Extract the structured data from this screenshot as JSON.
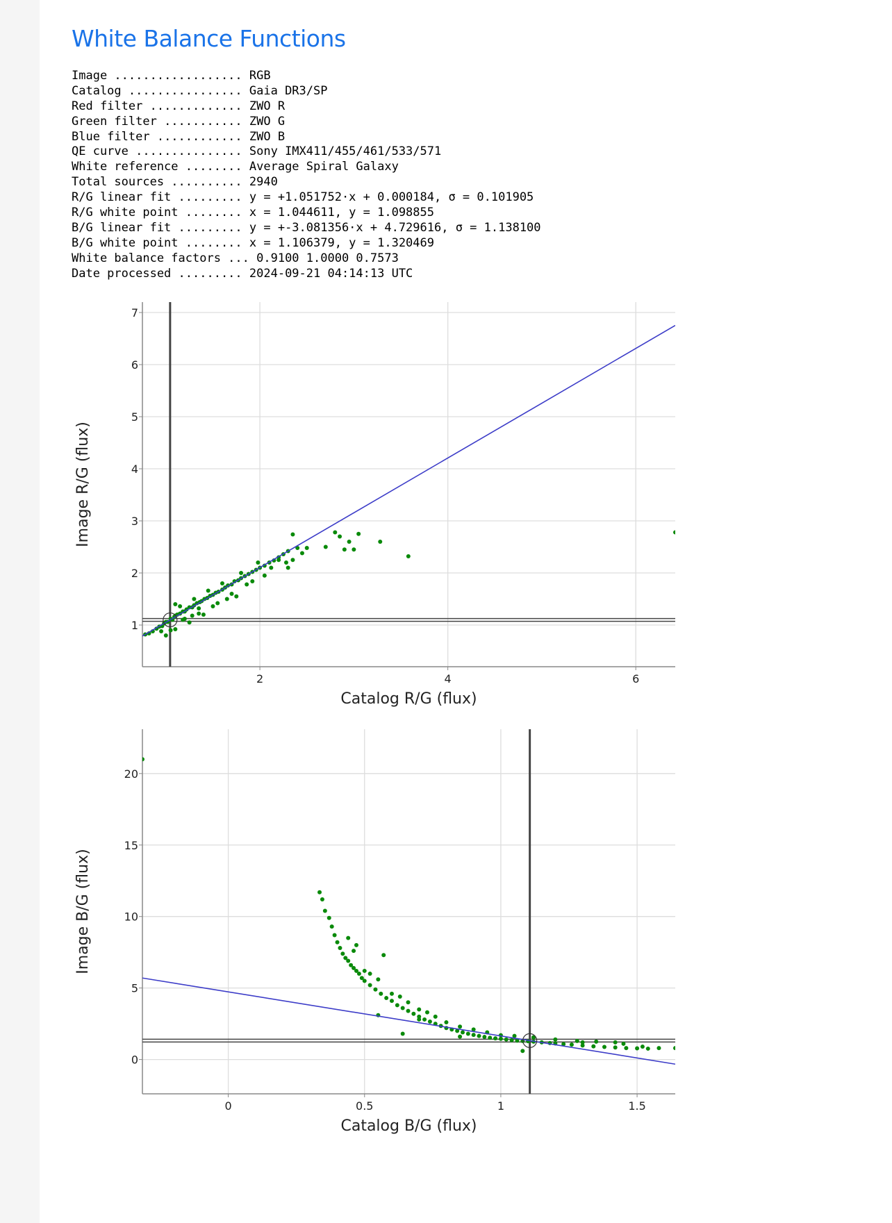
{
  "page": {
    "title": "White Balance Functions"
  },
  "info": [
    {
      "label": "Image",
      "value": "RGB"
    },
    {
      "label": "Catalog",
      "value": "Gaia DR3/SP"
    },
    {
      "label": "Red filter",
      "value": "ZWO R"
    },
    {
      "label": "Green filter",
      "value": "ZWO G"
    },
    {
      "label": "Blue filter",
      "value": "ZWO B"
    },
    {
      "label": "QE curve",
      "value": "Sony IMX411/455/461/533/571"
    },
    {
      "label": "White reference",
      "value": "Average Spiral Galaxy"
    },
    {
      "label": "Total sources",
      "value": "2940"
    },
    {
      "label": "R/G linear fit",
      "value": "y = +1.051752·x + 0.000184, σ = 0.101905"
    },
    {
      "label": "R/G white point",
      "value": "x = 1.044611, y = 1.098855"
    },
    {
      "label": "B/G linear fit",
      "value": "y = +-3.081356·x + 4.729616, σ = 1.138100"
    },
    {
      "label": "B/G white point",
      "value": "x = 1.106379, y = 1.320469"
    },
    {
      "label": "White balance factors",
      "value": "0.9100 1.0000 0.7573"
    },
    {
      "label": "Date processed",
      "value": "2024-09-21 04:14:13 UTC"
    }
  ],
  "chart_data": [
    {
      "type": "scatter",
      "xlabel": "Catalog R/G (flux)",
      "ylabel": "Image R/G (flux)",
      "xlim": [
        0.75,
        6.42
      ],
      "ylim": [
        0.2,
        7.2
      ],
      "xticks": [
        2,
        4,
        6
      ],
      "yticks": [
        1,
        2,
        3,
        4,
        5,
        6,
        7
      ],
      "grid": true,
      "colors": {
        "points": "#0a8a0a",
        "fit_line": "#3c3cc8",
        "white_point_lines": "#444444",
        "grid": "#dddddd"
      },
      "fit_line": {
        "slope": 1.051752,
        "intercept": 0.000184
      },
      "white_point": {
        "x": 1.044611,
        "y": 1.098855
      },
      "points": [
        [
          0.78,
          0.82
        ],
        [
          0.82,
          0.84
        ],
        [
          0.86,
          0.88
        ],
        [
          0.9,
          0.93
        ],
        [
          0.93,
          0.97
        ],
        [
          0.96,
          0.98
        ],
        [
          0.98,
          1.03
        ],
        [
          1.0,
          1.06
        ],
        [
          1.02,
          1.06
        ],
        [
          1.05,
          1.12
        ],
        [
          1.07,
          1.1
        ],
        [
          1.09,
          1.16
        ],
        [
          1.1,
          1.18
        ],
        [
          1.12,
          1.2
        ],
        [
          1.15,
          1.22
        ],
        [
          1.18,
          1.26
        ],
        [
          1.2,
          1.26
        ],
        [
          1.22,
          1.3
        ],
        [
          1.25,
          1.34
        ],
        [
          1.28,
          1.34
        ],
        [
          1.3,
          1.38
        ],
        [
          1.33,
          1.42
        ],
        [
          1.36,
          1.44
        ],
        [
          1.38,
          1.46
        ],
        [
          1.41,
          1.5
        ],
        [
          1.44,
          1.52
        ],
        [
          1.47,
          1.56
        ],
        [
          1.5,
          1.58
        ],
        [
          1.53,
          1.62
        ],
        [
          1.56,
          1.64
        ],
        [
          1.6,
          1.68
        ],
        [
          1.63,
          1.72
        ],
        [
          1.66,
          1.76
        ],
        [
          1.7,
          1.78
        ],
        [
          1.73,
          1.84
        ],
        [
          1.77,
          1.86
        ],
        [
          1.8,
          1.9
        ],
        [
          1.84,
          1.94
        ],
        [
          1.88,
          1.98
        ],
        [
          1.92,
          2.02
        ],
        [
          1.96,
          2.06
        ],
        [
          2.0,
          2.1
        ],
        [
          2.05,
          2.14
        ],
        [
          2.1,
          2.2
        ],
        [
          2.15,
          2.24
        ],
        [
          2.2,
          2.3
        ],
        [
          2.25,
          2.36
        ],
        [
          2.3,
          2.42
        ],
        [
          0.95,
          0.88
        ],
        [
          1.0,
          0.8
        ],
        [
          1.05,
          0.9
        ],
        [
          1.1,
          0.92
        ],
        [
          1.15,
          1.36
        ],
        [
          1.2,
          1.12
        ],
        [
          1.25,
          1.05
        ],
        [
          1.3,
          1.5
        ],
        [
          1.35,
          1.22
        ],
        [
          1.4,
          1.2
        ],
        [
          1.45,
          1.66
        ],
        [
          1.5,
          1.36
        ],
        [
          1.55,
          1.42
        ],
        [
          1.6,
          1.8
        ],
        [
          1.65,
          1.5
        ],
        [
          1.7,
          1.6
        ],
        [
          1.75,
          1.55
        ],
        [
          1.8,
          2.0
        ],
        [
          1.86,
          1.78
        ],
        [
          1.92,
          1.84
        ],
        [
          1.98,
          2.2
        ],
        [
          2.05,
          1.95
        ],
        [
          2.12,
          2.1
        ],
        [
          2.2,
          2.25
        ],
        [
          2.28,
          2.2
        ],
        [
          2.35,
          2.25
        ],
        [
          2.4,
          2.48
        ],
        [
          2.45,
          2.38
        ],
        [
          2.5,
          2.48
        ],
        [
          2.35,
          2.74
        ],
        [
          2.3,
          2.1
        ],
        [
          1.35,
          1.32
        ],
        [
          1.1,
          1.4
        ],
        [
          1.18,
          1.1
        ],
        [
          1.28,
          1.18
        ],
        [
          2.7,
          2.5
        ],
        [
          2.8,
          2.78
        ],
        [
          2.85,
          2.7
        ],
        [
          2.9,
          2.45
        ],
        [
          2.95,
          2.6
        ],
        [
          3.0,
          2.45
        ],
        [
          3.05,
          2.75
        ],
        [
          3.28,
          2.6
        ],
        [
          3.58,
          2.32
        ],
        [
          6.42,
          2.78
        ]
      ]
    },
    {
      "type": "scatter",
      "xlabel": "Catalog B/G (flux)",
      "ylabel": "Image B/G (flux)",
      "xlim": [
        -0.315,
        1.64
      ],
      "ylim": [
        -2.4,
        23.1
      ],
      "xticks": [
        0,
        0.5,
        1,
        1.5
      ],
      "yticks": [
        0,
        5,
        10,
        15,
        20
      ],
      "grid": true,
      "colors": {
        "points": "#0a8a0a",
        "fit_line": "#3c3cc8",
        "white_point_lines": "#444444",
        "grid": "#dddddd"
      },
      "fit_line": {
        "slope": -3.081356,
        "intercept": 4.729616
      },
      "white_point": {
        "x": 1.106379,
        "y": 1.320469
      },
      "points": [
        [
          0.335,
          11.7
        ],
        [
          0.345,
          11.2
        ],
        [
          0.355,
          10.4
        ],
        [
          0.37,
          9.9
        ],
        [
          0.38,
          9.3
        ],
        [
          0.39,
          8.7
        ],
        [
          0.4,
          8.2
        ],
        [
          0.41,
          7.8
        ],
        [
          0.42,
          7.4
        ],
        [
          0.43,
          7.1
        ],
        [
          0.44,
          6.9
        ],
        [
          0.45,
          6.6
        ],
        [
          0.46,
          6.4
        ],
        [
          0.47,
          6.2
        ],
        [
          0.48,
          6.0
        ],
        [
          0.49,
          5.7
        ],
        [
          0.5,
          5.5
        ],
        [
          0.52,
          5.2
        ],
        [
          0.54,
          4.9
        ],
        [
          0.56,
          4.6
        ],
        [
          0.58,
          4.3
        ],
        [
          0.6,
          4.1
        ],
        [
          0.62,
          3.8
        ],
        [
          0.64,
          3.6
        ],
        [
          0.66,
          3.4
        ],
        [
          0.68,
          3.2
        ],
        [
          0.7,
          3.0
        ],
        [
          0.72,
          2.8
        ],
        [
          0.74,
          2.65
        ],
        [
          0.76,
          2.5
        ],
        [
          0.78,
          2.35
        ],
        [
          0.8,
          2.2
        ],
        [
          0.82,
          2.1
        ],
        [
          0.84,
          2.0
        ],
        [
          0.86,
          1.9
        ],
        [
          0.88,
          1.8
        ],
        [
          0.9,
          1.72
        ],
        [
          0.92,
          1.65
        ],
        [
          0.94,
          1.58
        ],
        [
          0.96,
          1.52
        ],
        [
          0.98,
          1.48
        ],
        [
          1.0,
          1.45
        ],
        [
          1.02,
          1.4
        ],
        [
          1.04,
          1.36
        ],
        [
          1.06,
          1.32
        ],
        [
          1.08,
          1.3
        ],
        [
          1.1,
          1.28
        ],
        [
          1.12,
          1.25
        ],
        [
          1.15,
          1.2
        ],
        [
          1.18,
          1.15
        ],
        [
          1.2,
          1.12
        ],
        [
          1.23,
          1.08
        ],
        [
          1.26,
          1.04
        ],
        [
          1.3,
          0.98
        ],
        [
          1.34,
          0.92
        ],
        [
          1.38,
          0.88
        ],
        [
          1.42,
          0.84
        ],
        [
          1.46,
          0.8
        ],
        [
          1.5,
          0.78
        ],
        [
          1.54,
          0.76
        ],
        [
          1.58,
          0.8
        ],
        [
          1.64,
          0.8
        ],
        [
          0.44,
          8.5
        ],
        [
          0.46,
          7.6
        ],
        [
          0.47,
          8.0
        ],
        [
          0.5,
          6.2
        ],
        [
          0.52,
          6.0
        ],
        [
          0.55,
          5.6
        ],
        [
          0.57,
          7.3
        ],
        [
          0.6,
          4.6
        ],
        [
          0.63,
          4.4
        ],
        [
          0.66,
          4.0
        ],
        [
          0.7,
          3.5
        ],
        [
          0.73,
          3.3
        ],
        [
          0.76,
          3.0
        ],
        [
          0.8,
          2.6
        ],
        [
          0.85,
          2.3
        ],
        [
          0.9,
          2.1
        ],
        [
          0.95,
          1.9
        ],
        [
          1.0,
          1.7
        ],
        [
          1.05,
          1.65
        ],
        [
          1.12,
          1.55
        ],
        [
          1.2,
          1.4
        ],
        [
          1.28,
          1.3
        ],
        [
          1.35,
          1.25
        ],
        [
          1.42,
          1.2
        ],
        [
          0.55,
          3.1
        ],
        [
          0.64,
          1.8
        ],
        [
          0.7,
          2.8
        ],
        [
          0.85,
          1.6
        ],
        [
          1.08,
          0.6
        ],
        [
          1.3,
          1.2
        ],
        [
          1.45,
          1.1
        ],
        [
          1.52,
          0.9
        ],
        [
          -0.315,
          21.0
        ]
      ]
    }
  ]
}
